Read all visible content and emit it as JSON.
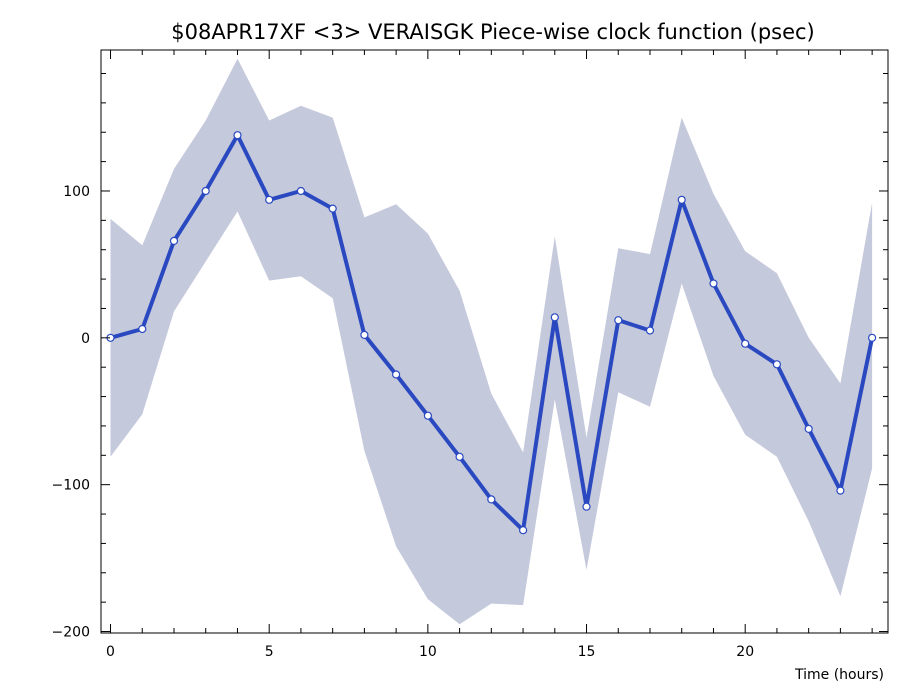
{
  "chart_data": {
    "type": "line",
    "title": "$08APR17XF <3>  VERAISGK  Piece-wise clock function (psec)",
    "xlabel": "Time (hours)",
    "ylabel": "",
    "xlim": [
      -0.3,
      24.5
    ],
    "ylim": [
      -201,
      196
    ],
    "x_ticks": [
      0,
      5,
      10,
      15,
      20
    ],
    "y_ticks": [
      -200,
      -100,
      0,
      100
    ],
    "x_tick_labels": [
      "0",
      "5",
      "10",
      "15",
      "20"
    ],
    "y_tick_labels": [
      "−200",
      "−100",
      "0",
      "100"
    ],
    "grid": false,
    "legend": "none",
    "series": [
      {
        "x": [
          0,
          1,
          2,
          3,
          4,
          5,
          6,
          7,
          8,
          9,
          10,
          11,
          12,
          13,
          14,
          15,
          16,
          17,
          18,
          19,
          20,
          21,
          22,
          23,
          24
        ],
        "values": [
          0,
          6,
          66,
          100,
          138,
          94,
          100,
          88,
          2,
          -25,
          -53,
          -81,
          -110,
          -131,
          14,
          -115,
          12,
          5,
          94,
          37,
          -4,
          -18,
          -62,
          -104,
          0
        ]
      }
    ],
    "band": {
      "x": [
        0,
        1,
        2,
        3,
        4,
        5,
        6,
        7,
        8,
        9,
        10,
        11,
        12,
        13,
        14,
        15,
        16,
        17,
        18,
        19,
        20,
        21,
        22,
        23,
        24
      ],
      "upper": [
        81,
        63,
        115,
        148,
        190,
        148,
        158,
        150,
        82,
        91,
        71,
        32,
        -38,
        -78,
        69,
        -68,
        61,
        57,
        150,
        98,
        59,
        44,
        0,
        -31,
        92
      ],
      "lower": [
        -81,
        -52,
        18,
        52,
        86,
        39,
        42,
        27,
        -77,
        -142,
        -178,
        -195,
        -181,
        -182,
        -42,
        -158,
        -37,
        -47,
        37,
        -26,
        -66,
        -81,
        -125,
        -176,
        -89
      ]
    },
    "colors": {
      "line": "#2a49c1",
      "band": "#c5c9dc",
      "marker_fill": "#ffffff",
      "axis": "#000000"
    }
  }
}
